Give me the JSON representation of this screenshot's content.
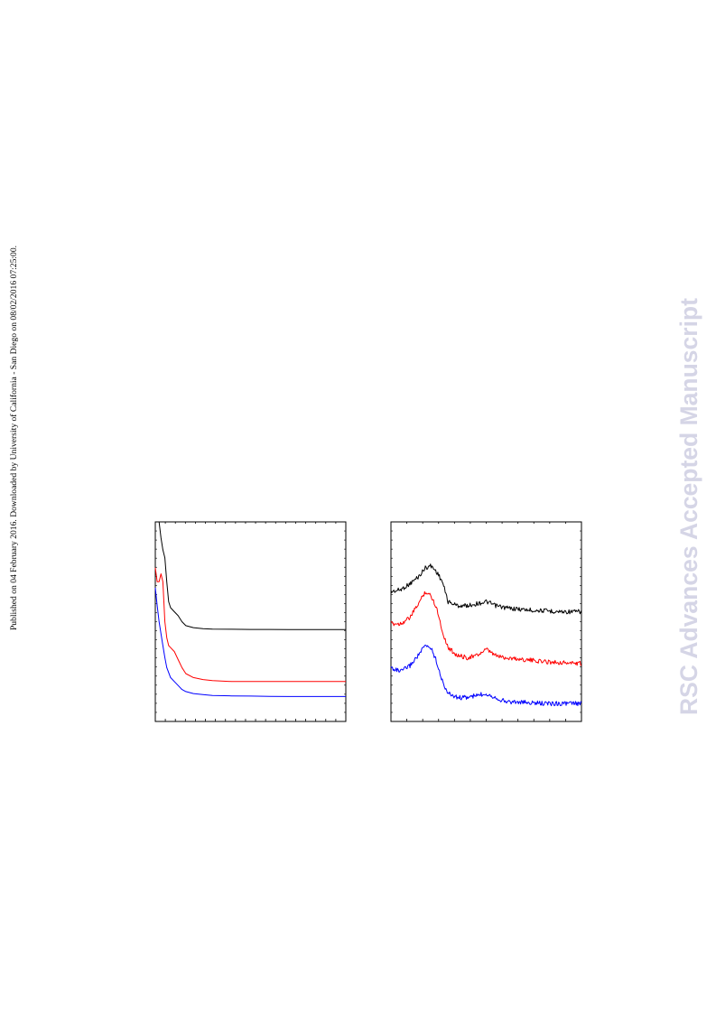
{
  "side_note": "Published on 04 February 2016. Downloaded by University of California - San Diego on 08/02/2016 07:25:00.",
  "watermark": "RSC Advances Accepted Manuscript",
  "colors": {
    "series_1": "#000000",
    "series_2": "#ff0000",
    "series_3": "#0000ff",
    "frame": "#000000",
    "watermark": "#d5d5e6"
  },
  "chart_data": [
    {
      "type": "line",
      "title": "",
      "xlabel": "",
      "ylabel": "",
      "grid": false,
      "xlim": [
        0,
        1
      ],
      "ylim": [
        0,
        1
      ],
      "x_minor_ticks": 19,
      "series": [
        {
          "color": "#000000",
          "x": [
            0.02,
            0.03,
            0.04,
            0.05,
            0.06,
            0.07,
            0.08,
            0.1,
            0.12,
            0.14,
            0.16,
            0.2,
            0.25,
            0.3,
            0.4,
            0.5,
            0.6,
            0.7,
            0.8,
            0.9,
            1.0
          ],
          "y": [
            1.0,
            0.92,
            0.86,
            0.82,
            0.7,
            0.6,
            0.57,
            0.55,
            0.53,
            0.5,
            0.48,
            0.47,
            0.465,
            0.463,
            0.462,
            0.461,
            0.461,
            0.46,
            0.46,
            0.46,
            0.46
          ]
        },
        {
          "color": "#ff0000",
          "x": [
            0.0,
            0.01,
            0.02,
            0.03,
            0.04,
            0.045,
            0.05,
            0.06,
            0.07,
            0.08,
            0.1,
            0.12,
            0.14,
            0.16,
            0.2,
            0.25,
            0.3,
            0.4,
            0.5,
            0.6,
            0.7,
            0.8,
            0.9,
            1.0
          ],
          "y": [
            0.77,
            0.7,
            0.7,
            0.74,
            0.7,
            0.6,
            0.5,
            0.42,
            0.38,
            0.37,
            0.35,
            0.31,
            0.27,
            0.24,
            0.22,
            0.21,
            0.205,
            0.2,
            0.2,
            0.2,
            0.2,
            0.2,
            0.2,
            0.2
          ]
        },
        {
          "color": "#0000ff",
          "x": [
            0.0,
            0.01,
            0.02,
            0.03,
            0.04,
            0.05,
            0.06,
            0.08,
            0.1,
            0.12,
            0.14,
            0.16,
            0.2,
            0.25,
            0.3,
            0.4,
            0.5,
            0.6,
            0.7,
            0.8,
            0.9,
            1.0
          ],
          "y": [
            0.67,
            0.58,
            0.5,
            0.44,
            0.38,
            0.32,
            0.27,
            0.22,
            0.2,
            0.18,
            0.16,
            0.15,
            0.14,
            0.135,
            0.13,
            0.128,
            0.127,
            0.126,
            0.125,
            0.125,
            0.125,
            0.125
          ]
        }
      ]
    },
    {
      "type": "line",
      "title": "",
      "xlabel": "",
      "ylabel": "",
      "grid": false,
      "xlim": [
        0,
        1
      ],
      "ylim": [
        0,
        1
      ],
      "x_minor_ticks": 12,
      "series": [
        {
          "color": "#000000",
          "x": [
            0.0,
            0.05,
            0.1,
            0.15,
            0.18,
            0.21,
            0.24,
            0.27,
            0.3,
            0.35,
            0.4,
            0.45,
            0.5,
            0.55,
            0.6,
            0.7,
            0.8,
            0.9,
            1.0
          ],
          "y": [
            0.65,
            0.66,
            0.69,
            0.73,
            0.77,
            0.78,
            0.75,
            0.7,
            0.6,
            0.58,
            0.58,
            0.59,
            0.6,
            0.58,
            0.57,
            0.56,
            0.555,
            0.55,
            0.55
          ]
        },
        {
          "color": "#ff0000",
          "x": [
            0.0,
            0.05,
            0.1,
            0.15,
            0.18,
            0.21,
            0.24,
            0.27,
            0.3,
            0.35,
            0.4,
            0.45,
            0.5,
            0.55,
            0.6,
            0.7,
            0.8,
            0.9,
            1.0
          ],
          "y": [
            0.49,
            0.49,
            0.52,
            0.6,
            0.65,
            0.63,
            0.57,
            0.45,
            0.37,
            0.33,
            0.32,
            0.33,
            0.36,
            0.33,
            0.32,
            0.31,
            0.3,
            0.295,
            0.29
          ]
        },
        {
          "color": "#0000ff",
          "x": [
            0.0,
            0.05,
            0.1,
            0.15,
            0.18,
            0.21,
            0.24,
            0.27,
            0.3,
            0.35,
            0.4,
            0.45,
            0.5,
            0.55,
            0.6,
            0.7,
            0.8,
            0.9,
            1.0
          ],
          "y": [
            0.27,
            0.25,
            0.28,
            0.34,
            0.38,
            0.37,
            0.3,
            0.2,
            0.14,
            0.12,
            0.12,
            0.13,
            0.14,
            0.12,
            0.1,
            0.095,
            0.09,
            0.09,
            0.09
          ]
        }
      ]
    }
  ]
}
